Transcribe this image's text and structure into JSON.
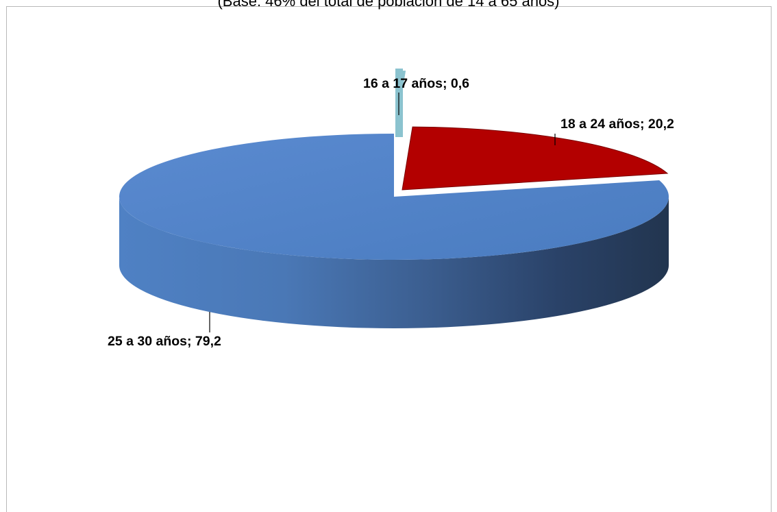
{
  "chart_data": {
    "type": "pie",
    "title": "(Base: 46% del total de población de 14 a 65 años)",
    "slices": [
      {
        "label": "16 a 17 años",
        "value": 0.6,
        "color": "#8bc3cf",
        "data_label": "16 a 17 años; 0,6"
      },
      {
        "label": "18 a 24 años",
        "value": 20.2,
        "color": "#b30000",
        "data_label": "18 a 24 años; 20,2"
      },
      {
        "label": "25 a 30 años",
        "value": 79.2,
        "color": "#4f81c4",
        "data_label": "25 a 30 años; 79,2"
      }
    ],
    "legend": "none",
    "style": "3d"
  }
}
